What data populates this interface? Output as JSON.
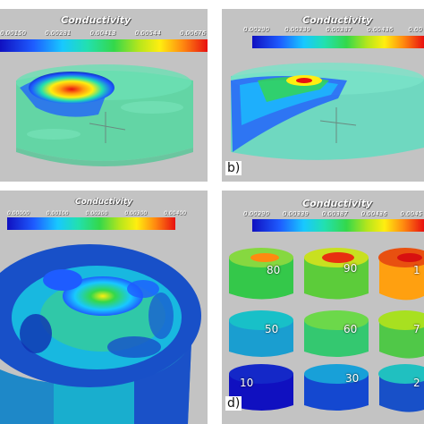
{
  "panels": {
    "a": {
      "title": "Conductivity",
      "ticks": [
        "0.00150",
        "0.00281",
        "0.00413",
        "0.00544",
        "0.00676"
      ]
    },
    "b": {
      "title": "Conductivity",
      "ticks": [
        "0.00290",
        "0.00339",
        "0.00387",
        "0.00436",
        "0.00"
      ],
      "label": "b)"
    },
    "c": {
      "title": "Conductivity",
      "ticks": [
        "0.00000",
        "0.00100",
        "0.00200",
        "0.00300",
        "0.00400"
      ]
    },
    "d": {
      "title": "Conductivity",
      "ticks": [
        "0.00290",
        "0.00339",
        "0.00387",
        "0.00436",
        "0.0045"
      ],
      "label": "d)",
      "sample_numbers": [
        "80",
        "90",
        "1",
        "50",
        "60",
        "7",
        "10",
        "30",
        "2"
      ]
    }
  },
  "colors": {
    "background": "#c3c3c3",
    "low": "#1010c0",
    "mid": "#34d84a",
    "high": "#e81010"
  }
}
